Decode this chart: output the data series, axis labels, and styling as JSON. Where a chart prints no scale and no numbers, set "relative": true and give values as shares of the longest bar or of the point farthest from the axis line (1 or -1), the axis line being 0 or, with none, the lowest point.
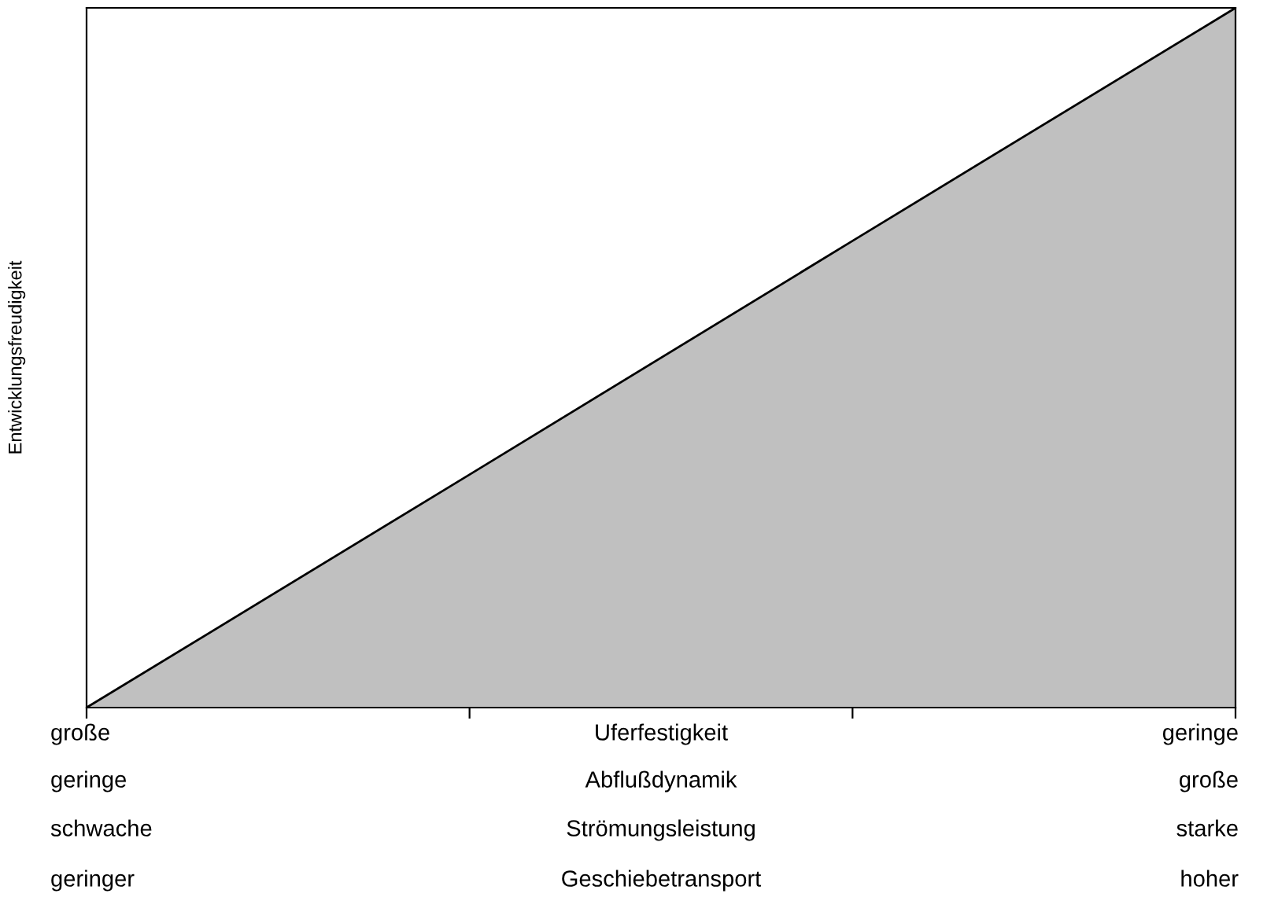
{
  "chart_data": {
    "type": "area",
    "relative": true,
    "ylabel": "Entwicklungsfreudigkeit",
    "categories": [
      null,
      null,
      null,
      null
    ],
    "series": [
      {
        "color": "#c0c0c0",
        "values": [
          0,
          0.333,
          0.667,
          1
        ]
      }
    ],
    "grid": false,
    "annotations": [
      "große",
      "Uferfestigkeit",
      "geringe",
      "geringe",
      "Abflußdynamik",
      "große",
      "schwache",
      "Strömungsleistung",
      "starke",
      "geringer",
      "Geschiebetransport",
      "hoher"
    ]
  }
}
